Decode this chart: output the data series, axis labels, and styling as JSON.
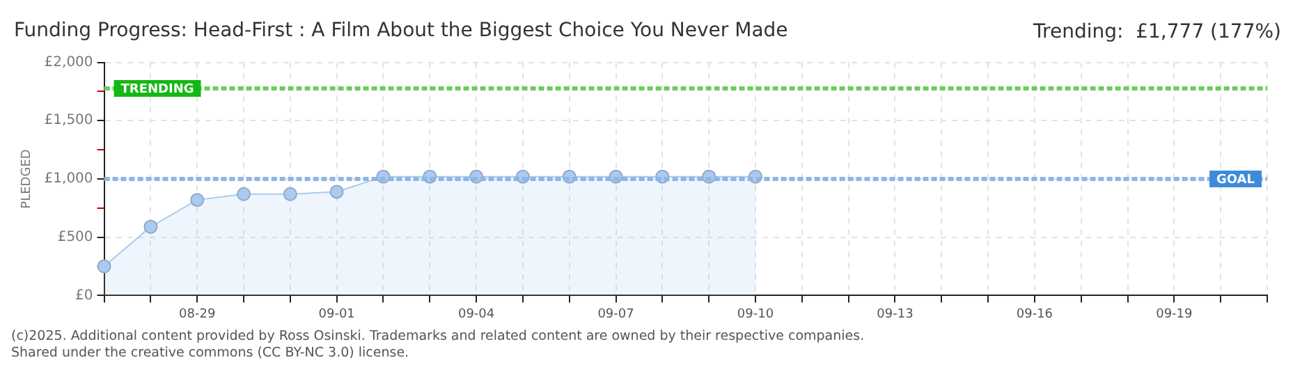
{
  "chart_data": {
    "type": "area",
    "title": "Funding Progress: Head-First : A Film About the Biggest Choice You Never Made",
    "ylabel": "PLEDGED",
    "annotations": [
      "Trending:  £1,777 (177%)",
      "(c)2025. Additional content provided by Ross Osinski. Trademarks and related content are owned by their respective companies.",
      "Shared under the creative commons (CC BY-NC 3.0) license."
    ],
    "categories": [
      null,
      null,
      "08-29",
      null,
      null,
      "09-01",
      null,
      null,
      "09-04",
      null,
      null,
      "09-07",
      null,
      null,
      "09-10",
      null,
      null,
      "09-13",
      null,
      null,
      "09-16",
      null,
      null,
      "09-19",
      null,
      null
    ],
    "series": [
      {
        "color": "#a9cbf0",
        "values": [
          250,
          590,
          820,
          870,
          870,
          890,
          1020,
          1020,
          1020,
          1020,
          1020,
          1020,
          1020,
          1020,
          1020,
          null,
          null,
          null,
          null,
          null,
          null,
          null,
          null,
          null,
          null,
          null
        ]
      }
    ],
    "ylim": [
      0,
      2000
    ],
    "yticks": [
      {
        "value": 0,
        "label": "£0"
      },
      {
        "value": 250,
        "label": null
      },
      {
        "value": 500,
        "label": "£500"
      },
      {
        "value": 750,
        "label": null
      },
      {
        "value": 1000,
        "label": "£1,000"
      },
      {
        "value": 1250,
        "label": null
      },
      {
        "value": 1500,
        "label": "£1,500"
      },
      {
        "value": 1750,
        "label": null
      },
      {
        "value": 2000,
        "label": "£2,000"
      }
    ],
    "ref_lines": [
      {
        "axis": "y",
        "value": 1777,
        "label": "TRENDING",
        "color": "#6ccb5f",
        "line_style": "dotted"
      },
      {
        "axis": "y",
        "value": 1000,
        "label": "GOAL",
        "color": "#8fb5e3",
        "line_style": "dotted"
      }
    ],
    "grid": true,
    "legend": false,
    "marker": "circle",
    "line_style": "solid"
  }
}
